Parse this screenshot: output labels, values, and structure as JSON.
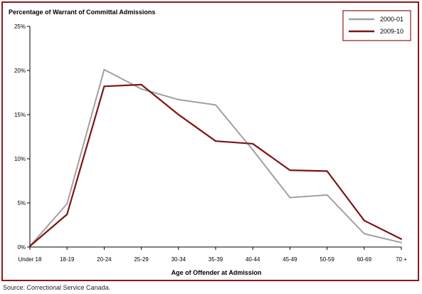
{
  "source_note": "Source:  Correctional Service Canada.",
  "chart_data": {
    "type": "line",
    "title": "Percentage of Warrant of Committal Admissions",
    "xlabel": "Age of Offender at Admission",
    "ylabel": "",
    "categories": [
      "Under 18",
      "18-19",
      "20-24",
      "25-29",
      "30-34",
      "35-39",
      "40-44",
      "45-49",
      "50-59",
      "60-69",
      "70 +"
    ],
    "ylim": [
      0,
      25
    ],
    "yticks": [
      0,
      5,
      10,
      15,
      20,
      25
    ],
    "ytick_labels": [
      "0%",
      "5%",
      "10%",
      "15%",
      "20%",
      "25%"
    ],
    "grid": false,
    "legend_position": "top-right",
    "series": [
      {
        "name": "2000-01",
        "color": "#a0a0a0",
        "values": [
          0.1,
          4.9,
          20.1,
          17.9,
          16.7,
          16.1,
          11.0,
          5.6,
          5.9,
          1.5,
          0.5
        ]
      },
      {
        "name": "2009-10",
        "color": "#7b1515",
        "values": [
          0.1,
          3.7,
          18.2,
          18.4,
          15.0,
          12.0,
          11.7,
          8.7,
          8.6,
          3.0,
          0.9
        ]
      }
    ]
  }
}
